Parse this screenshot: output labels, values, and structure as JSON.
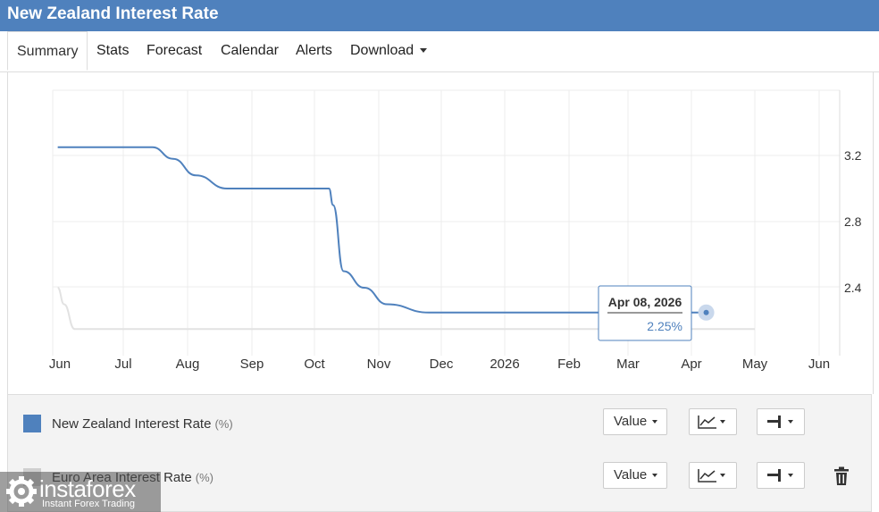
{
  "title": "New Zealand Interest Rate",
  "tabs": [
    {
      "label": "Summary"
    },
    {
      "label": "Stats"
    },
    {
      "label": "Forecast"
    },
    {
      "label": "Calendar"
    },
    {
      "label": "Alerts"
    },
    {
      "label": "Download"
    }
  ],
  "chart_data": {
    "type": "line",
    "x_tick_labels": [
      "Jun",
      "Jul",
      "Aug",
      "Sep",
      "Oct",
      "Nov",
      "Dec",
      "2026",
      "Feb",
      "Mar",
      "Apr",
      "May",
      "Jun"
    ],
    "y_tick_labels": [
      "3.2",
      "2.8",
      "2.4"
    ],
    "ylim": [
      2.0,
      3.6
    ],
    "grid": true,
    "legend_position": "bottom",
    "series": [
      {
        "name": "New Zealand Interest Rate",
        "unit": "(%)",
        "color": "#4f81bd",
        "points": [
          [
            "2025-05-31",
            3.25
          ],
          [
            "2025-07-15",
            3.25
          ],
          [
            "2025-07-25",
            3.18
          ],
          [
            "2025-08-05",
            3.08
          ],
          [
            "2025-08-20",
            3.0
          ],
          [
            "2025-10-08",
            3.0
          ],
          [
            "2025-10-10",
            2.9
          ],
          [
            "2025-10-15",
            2.5
          ],
          [
            "2025-10-25",
            2.4
          ],
          [
            "2025-11-05",
            2.3
          ],
          [
            "2025-11-25",
            2.25
          ],
          [
            "2026-04-08",
            2.25
          ]
        ]
      },
      {
        "name": "Euro Area Interest Rate",
        "unit": "(%)",
        "color": "#e2e2e2",
        "points": [
          [
            "2025-05-31",
            2.4
          ],
          [
            "2025-06-03",
            2.3
          ],
          [
            "2025-06-08",
            2.15
          ],
          [
            "2026-05-01",
            2.15
          ]
        ]
      }
    ],
    "tooltip": {
      "date": "Apr 08, 2026",
      "value": "2.25%"
    }
  },
  "legend": {
    "rows": [
      {
        "name": "New Zealand Interest Rate",
        "unit": "(%)",
        "color": "#4f81bd",
        "value_label": "Value"
      },
      {
        "name": "Euro Area Interest Rate",
        "unit": "(%)",
        "color": "#cfcfcf",
        "value_label": "Value"
      }
    ]
  },
  "watermark": {
    "brand": "instaforex",
    "tagline": "Instant Forex Trading"
  },
  "icons": {
    "line_chart": "line-chart-icon",
    "axis": "axis-icon",
    "trash": "trash-icon",
    "logo": "gear-logo-icon"
  }
}
